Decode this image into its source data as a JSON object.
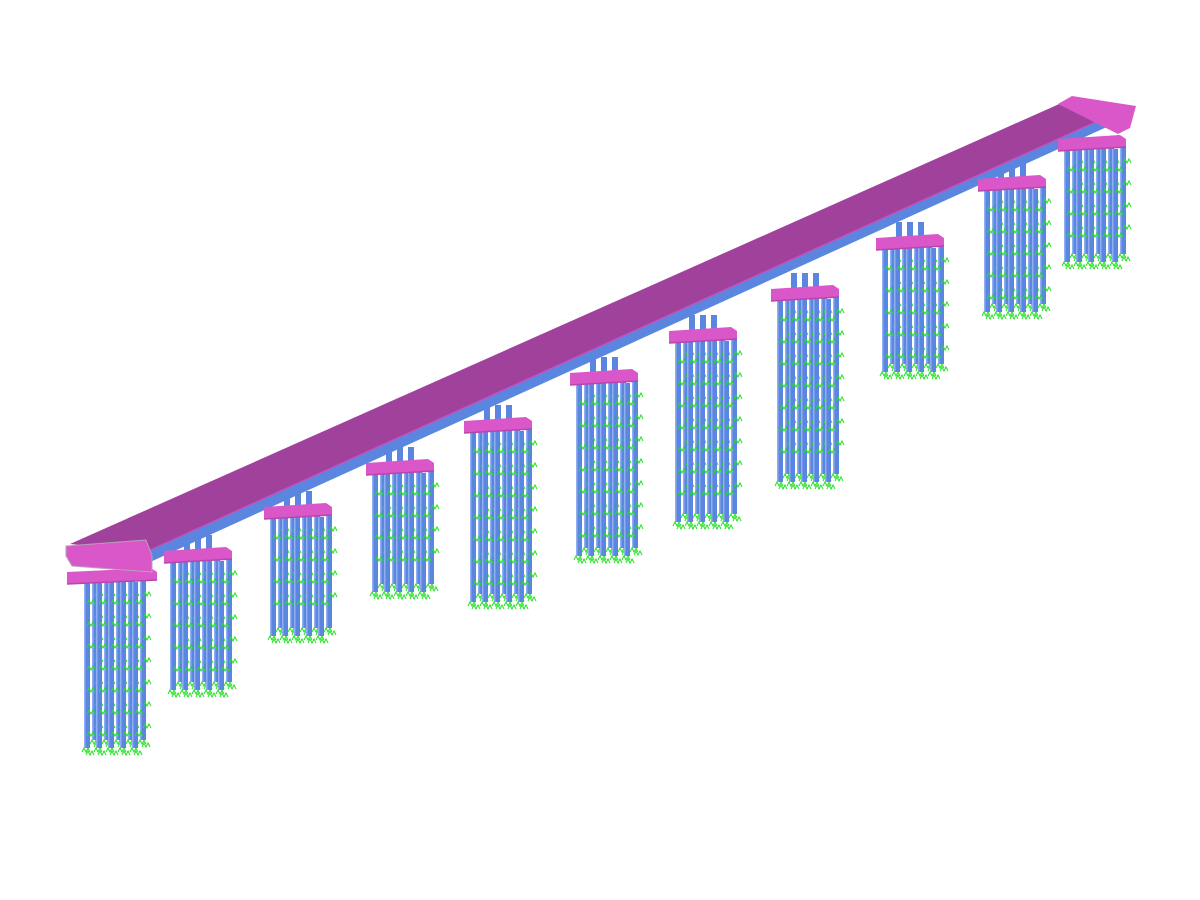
{
  "model": {
    "structure": "bridge",
    "supports_count": 11,
    "colors": {
      "background": "#ffffff",
      "deck": "#a0419c",
      "deck_edge": "#c152c0",
      "pier_cap": "#d957c9",
      "pier_cap_shadow": "#b845ad",
      "girder": "#5b86e0",
      "pile": "#5b86e0",
      "pile_highlight": "#8fb0f0",
      "spring_support": "#22e022"
    }
  }
}
